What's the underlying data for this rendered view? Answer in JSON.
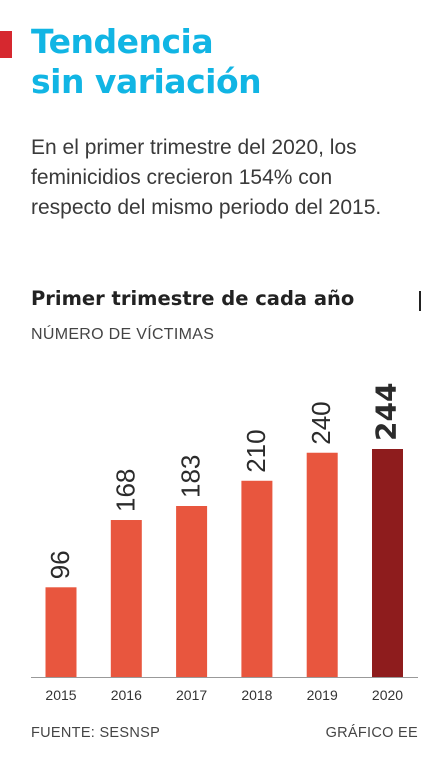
{
  "header": {
    "title_line1": "Tendencia",
    "title_line2": "sin variación",
    "description": "En el primer trimestre del 2020, los feminicidios crecieron 154% con respecto del mismo periodo del 2015."
  },
  "colors": {
    "accent": "#d6282f",
    "title": "#11b5e4",
    "bar": "#e8563e",
    "bar_highlight": "#8e1c1d",
    "baseline": "#999999"
  },
  "footer": {
    "source": "FUENTE: SESNSP",
    "credit": "GRÁFICO EE"
  },
  "chart_data": {
    "type": "bar",
    "title": "Primer trimestre de cada año",
    "ylabel": "NÚMERO DE VÍCTIMAS",
    "xlabel": "",
    "categories": [
      "2015",
      "2016",
      "2017",
      "2018",
      "2019",
      "2020"
    ],
    "values": [
      96,
      168,
      183,
      210,
      240,
      244
    ],
    "highlight_category": "2020",
    "ylim": [
      0,
      244
    ],
    "grid": false,
    "legend": "none",
    "data_labels": "vertical-above-bars"
  }
}
